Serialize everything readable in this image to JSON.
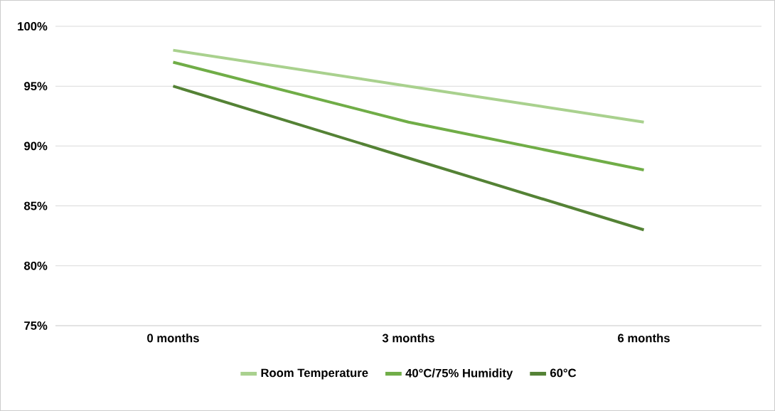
{
  "chart_data": {
    "type": "line",
    "categories": [
      "0 months",
      "3 months",
      "6 months"
    ],
    "series": [
      {
        "name": "Room Temperature",
        "color": "#a9d18e",
        "values": [
          98,
          95,
          92
        ]
      },
      {
        "name": "40°C/75% Humidity",
        "color": "#70ad47",
        "values": [
          97,
          92,
          88
        ]
      },
      {
        "name": "60°C",
        "color": "#548235",
        "values": [
          95,
          89,
          83
        ]
      }
    ],
    "ylim": [
      75,
      100
    ],
    "yticks": [
      {
        "value": 75,
        "label": "75%"
      },
      {
        "value": 80,
        "label": "80%"
      },
      {
        "value": 85,
        "label": "85%"
      },
      {
        "value": 90,
        "label": "90%"
      },
      {
        "value": 95,
        "label": "95%"
      },
      {
        "value": 100,
        "label": "100%"
      }
    ],
    "grid": "y",
    "legend": "bottom",
    "marker": "none",
    "line_style": "solid"
  }
}
